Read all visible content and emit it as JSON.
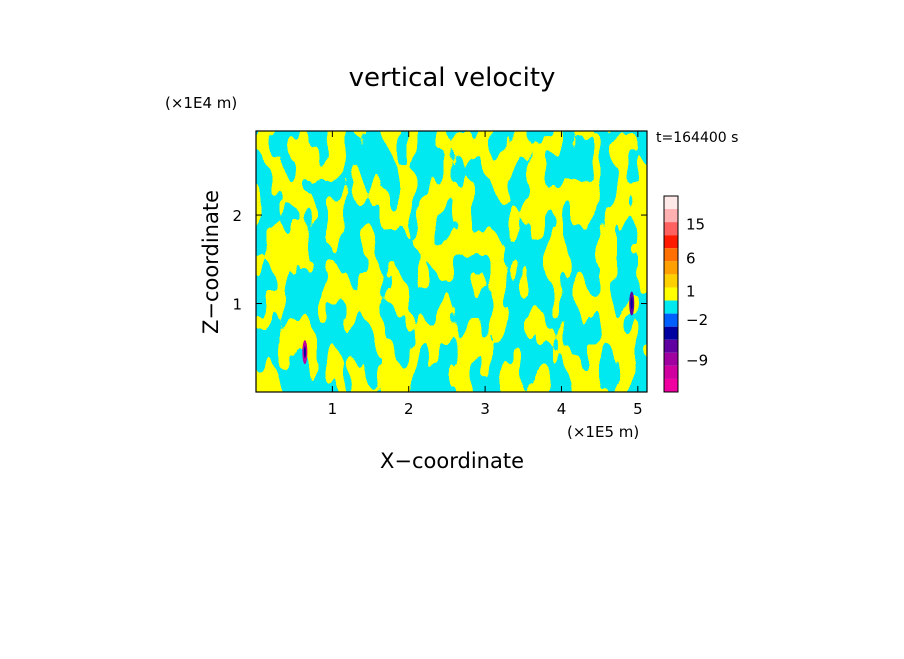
{
  "chart_data": {
    "type": "heatmap",
    "title": "vertical velocity",
    "xlabel": "X−coordinate",
    "ylabel": "Z−coordinate",
    "x_unit": "(×1E5 m)",
    "y_unit": "(×1E4 m)",
    "time_label": "t=164400 s",
    "xlim": [
      0,
      5.12
    ],
    "ylim": [
      0,
      2.95
    ],
    "x_ticks": [
      1,
      2,
      3,
      4,
      5
    ],
    "x_tick_labels": [
      "1",
      "2",
      "3",
      "4",
      "5"
    ],
    "y_ticks": [
      1,
      2
    ],
    "y_tick_labels": [
      "1",
      "2"
    ],
    "dominant_colors": {
      "positive": "#ffff00",
      "negative": "#00e8f0"
    },
    "colorbar": {
      "colors": [
        "#ffe8e8",
        "#ffb0b0",
        "#ff6060",
        "#ff1a00",
        "#ff7000",
        "#ffa000",
        "#ffd000",
        "#ffff00",
        "#00e8f0",
        "#0060ff",
        "#0000a0",
        "#6000a0",
        "#a000a0",
        "#d000a0",
        "#f000a0"
      ],
      "tick_labels": [
        "15",
        "6",
        "1",
        "−2",
        "−9"
      ],
      "tick_values": [
        15,
        6,
        1,
        -2,
        -9
      ]
    },
    "features": [
      {
        "x": 0.64,
        "z": 0.45,
        "sign": "negative"
      },
      {
        "x": 4.92,
        "z": 1.0,
        "sign": "negative"
      }
    ]
  }
}
